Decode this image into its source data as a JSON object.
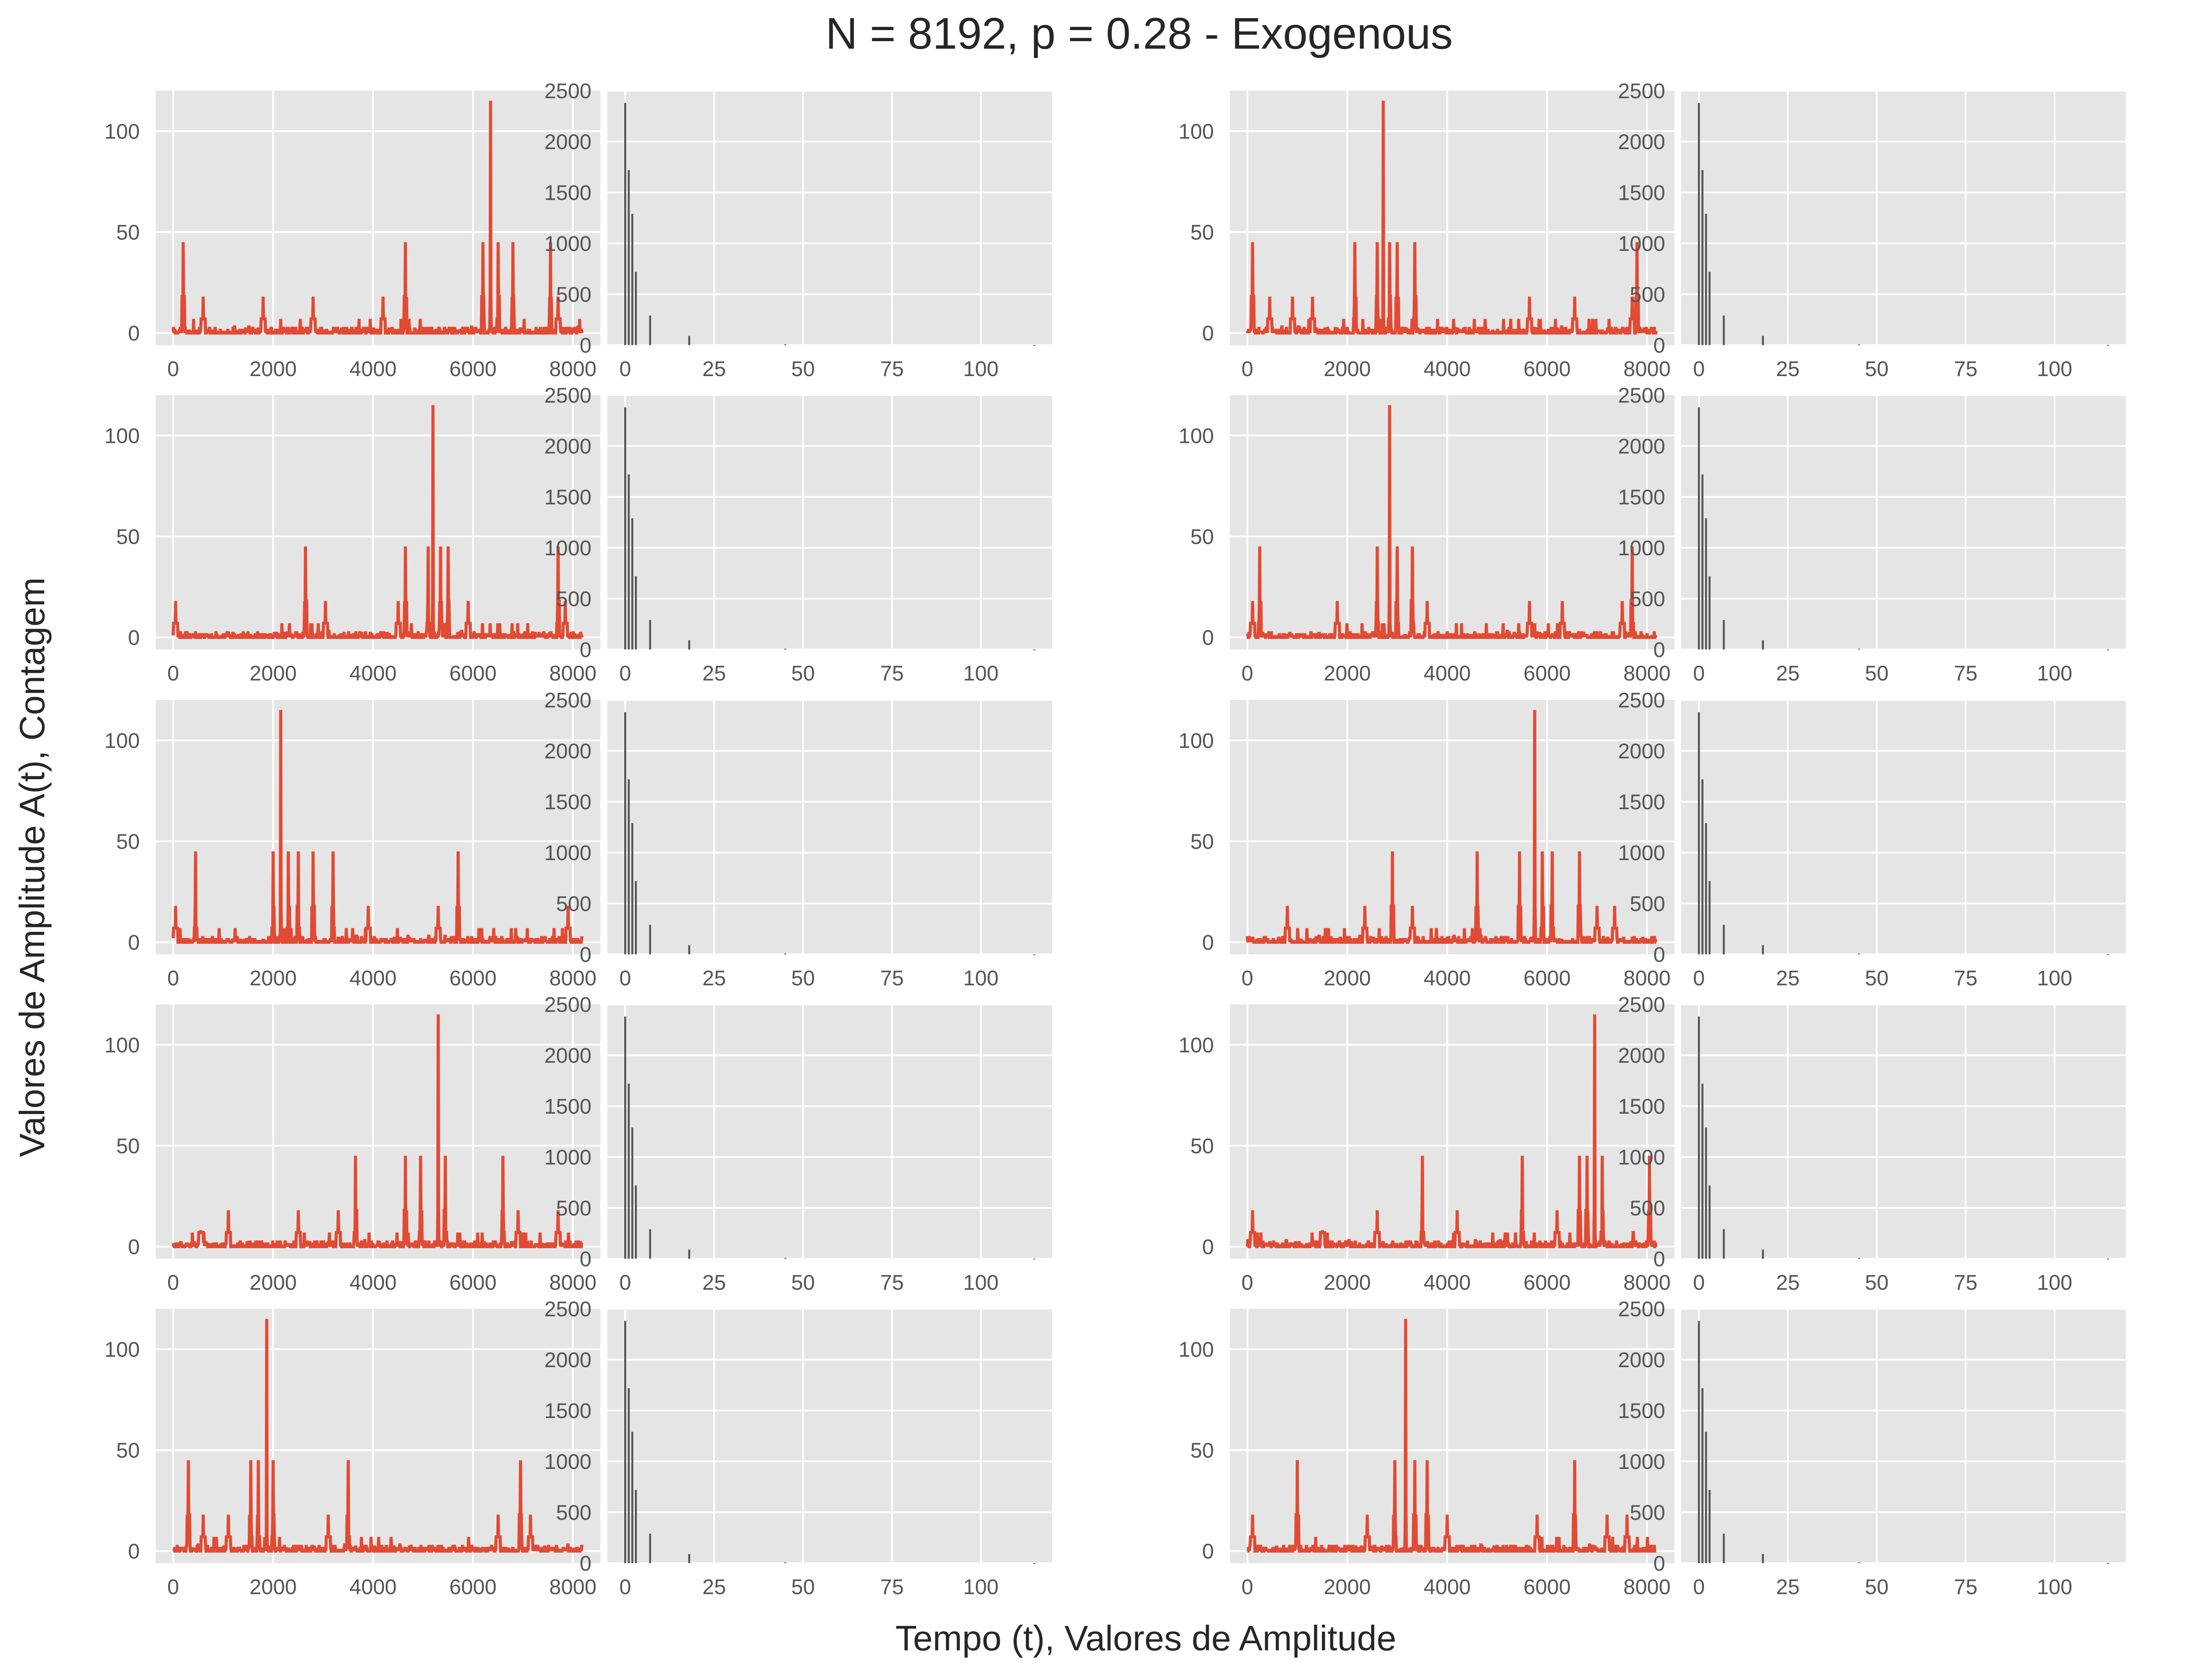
{
  "figure": {
    "title": "N = 8192, p = 0.28 - Exogenous",
    "xlabel": "Tempo (t), Valores de Amplitude",
    "ylabel": "Valores de Amplitude A(t), Contagem"
  },
  "colors": {
    "background": "#ffffff",
    "axes_face": "#e5e5e5",
    "grid": "#ffffff",
    "series_line": "#e24a33",
    "hist_bar": "#555555",
    "tick_text": "#555555"
  },
  "chart_data": {
    "type": "grid",
    "rows": 5,
    "cols": 4,
    "grid": true,
    "series_axes": {
      "type": "line",
      "xlim": [
        -350,
        8550
      ],
      "ylim": [
        -6,
        120
      ],
      "xticks": [
        0,
        2000,
        4000,
        6000,
        8000
      ],
      "yticks": [
        0,
        50,
        100
      ]
    },
    "hist_axes": {
      "type": "bar",
      "xlim": [
        -5,
        120
      ],
      "ylim": [
        0,
        2500
      ],
      "xticks": [
        0,
        25,
        50,
        75,
        100
      ],
      "yticks": [
        0,
        500,
        1000,
        1500,
        2000,
        2500
      ],
      "bins": [
        {
          "x": 0,
          "count": 2380
        },
        {
          "x": 1,
          "count": 1720
        },
        {
          "x": 2,
          "count": 1290
        },
        {
          "x": 3,
          "count": 720
        },
        {
          "x": 7,
          "count": 290
        },
        {
          "x": 18,
          "count": 90
        },
        {
          "x": 45,
          "count": 8
        },
        {
          "x": 115,
          "count": 1
        }
      ]
    },
    "panels": [
      {
        "peak_t": 6350,
        "peaks": [
          [
            200,
            45
          ],
          [
            600,
            18
          ],
          [
            1800,
            18
          ],
          [
            2800,
            18
          ],
          [
            4200,
            18
          ],
          [
            4650,
            45
          ],
          [
            6200,
            45
          ],
          [
            6350,
            115
          ],
          [
            6500,
            45
          ],
          [
            6800,
            45
          ],
          [
            7550,
            45
          ],
          [
            7700,
            18
          ]
        ]
      },
      {
        "peak_t": 2720,
        "peaks": [
          [
            100,
            45
          ],
          [
            450,
            18
          ],
          [
            900,
            18
          ],
          [
            1300,
            18
          ],
          [
            2150,
            45
          ],
          [
            2600,
            45
          ],
          [
            2720,
            115
          ],
          [
            2850,
            45
          ],
          [
            3000,
            45
          ],
          [
            3350,
            45
          ],
          [
            5650,
            18
          ],
          [
            6550,
            18
          ],
          [
            7700,
            18
          ],
          [
            7800,
            45
          ]
        ]
      },
      {
        "peak_t": 5200,
        "peaks": [
          [
            50,
            18
          ],
          [
            2650,
            45
          ],
          [
            3050,
            18
          ],
          [
            4500,
            18
          ],
          [
            4650,
            45
          ],
          [
            5100,
            45
          ],
          [
            5200,
            115
          ],
          [
            5350,
            45
          ],
          [
            5500,
            45
          ],
          [
            5900,
            18
          ],
          [
            7700,
            45
          ],
          [
            7850,
            18
          ]
        ]
      },
      {
        "peak_t": 2850,
        "peaks": [
          [
            100,
            18
          ],
          [
            250,
            45
          ],
          [
            1800,
            18
          ],
          [
            2600,
            45
          ],
          [
            2850,
            115
          ],
          [
            3000,
            45
          ],
          [
            3300,
            45
          ],
          [
            3600,
            18
          ],
          [
            5650,
            18
          ],
          [
            6300,
            18
          ],
          [
            7500,
            18
          ],
          [
            7700,
            45
          ]
        ]
      },
      {
        "peak_t": 2150,
        "peaks": [
          [
            50,
            18
          ],
          [
            450,
            45
          ],
          [
            2000,
            45
          ],
          [
            2150,
            115
          ],
          [
            2300,
            45
          ],
          [
            2500,
            45
          ],
          [
            2800,
            45
          ],
          [
            3200,
            45
          ],
          [
            3900,
            18
          ],
          [
            5300,
            18
          ],
          [
            5700,
            45
          ],
          [
            7900,
            18
          ]
        ]
      },
      {
        "peak_t": 5750,
        "peaks": [
          [
            800,
            18
          ],
          [
            2350,
            18
          ],
          [
            2900,
            45
          ],
          [
            3300,
            18
          ],
          [
            4600,
            45
          ],
          [
            5450,
            45
          ],
          [
            5750,
            115
          ],
          [
            5900,
            45
          ],
          [
            6100,
            45
          ],
          [
            6650,
            45
          ],
          [
            7000,
            18
          ],
          [
            7350,
            18
          ]
        ]
      },
      {
        "peak_t": 5300,
        "peaks": [
          [
            550,
            8
          ],
          [
            1100,
            18
          ],
          [
            2500,
            18
          ],
          [
            3300,
            18
          ],
          [
            3650,
            45
          ],
          [
            4650,
            45
          ],
          [
            4950,
            45
          ],
          [
            5300,
            115
          ],
          [
            5450,
            45
          ],
          [
            6600,
            45
          ],
          [
            6900,
            18
          ],
          [
            7700,
            18
          ]
        ]
      },
      {
        "peak_t": 6950,
        "peaks": [
          [
            100,
            18
          ],
          [
            1500,
            8
          ],
          [
            2600,
            18
          ],
          [
            3500,
            45
          ],
          [
            4200,
            18
          ],
          [
            5500,
            45
          ],
          [
            6200,
            18
          ],
          [
            6650,
            45
          ],
          [
            6800,
            45
          ],
          [
            6950,
            115
          ],
          [
            7100,
            45
          ],
          [
            8050,
            45
          ]
        ]
      },
      {
        "peak_t": 1870,
        "peaks": [
          [
            300,
            45
          ],
          [
            600,
            18
          ],
          [
            1100,
            18
          ],
          [
            1550,
            45
          ],
          [
            1700,
            45
          ],
          [
            1870,
            115
          ],
          [
            2000,
            45
          ],
          [
            3100,
            18
          ],
          [
            3500,
            45
          ],
          [
            6500,
            18
          ],
          [
            6950,
            45
          ],
          [
            7150,
            18
          ]
        ]
      },
      {
        "peak_t": 3170,
        "peaks": [
          [
            100,
            18
          ],
          [
            1000,
            45
          ],
          [
            2400,
            18
          ],
          [
            2950,
            45
          ],
          [
            3170,
            115
          ],
          [
            3350,
            45
          ],
          [
            3600,
            45
          ],
          [
            4000,
            18
          ],
          [
            5800,
            18
          ],
          [
            6550,
            45
          ],
          [
            7200,
            18
          ],
          [
            7600,
            18
          ]
        ]
      }
    ]
  }
}
